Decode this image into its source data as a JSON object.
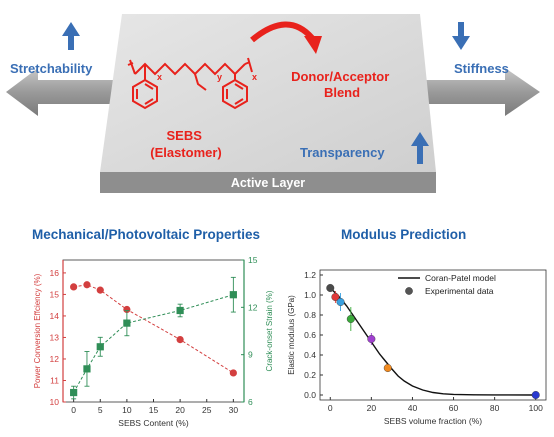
{
  "top_panel": {
    "layer_label": "Active Layer",
    "stretchability": "Stretchability",
    "stiffness": "Stiffness",
    "donor_acceptor": [
      "Donor/Acceptor",
      "Blend"
    ],
    "sebs": [
      "SEBS",
      "(Elastomer)"
    ],
    "transparency": "Transparency",
    "subscripts": {
      "x": "x",
      "y": "y"
    },
    "colors": {
      "blue": "#3a6fb5",
      "red": "#e8221c",
      "arrow_gray": "#a9a9a9",
      "layer_top": "#d6d6d6",
      "layer_front": "#8e8e8e"
    }
  },
  "headings": {
    "left": "Mechanical/Photovoltaic Properties",
    "right": "Modulus Prediction"
  },
  "chart_data": [
    {
      "type": "line",
      "xlabel": "SEBS Content (%)",
      "ylabel_left": "Power Conversion Effciency (%)",
      "ylabel_right": "Crack-onset Strain (%)",
      "x_ticks": [
        0,
        5,
        10,
        15,
        20,
        25,
        30
      ],
      "y_left_ticks": [
        10,
        11,
        12,
        13,
        14,
        15,
        16
      ],
      "y_right_ticks": [
        6,
        9,
        12,
        15
      ],
      "xlim": [
        -2,
        32
      ],
      "ylim_left": [
        10,
        16.6
      ],
      "ylim_right": [
        6,
        15
      ],
      "series": [
        {
          "axis": "left",
          "marker": "circle",
          "color": "#d33f3f",
          "x": [
            0,
            2.5,
            5,
            10,
            20,
            30
          ],
          "y": [
            15.35,
            15.45,
            15.2,
            14.3,
            12.9,
            11.35
          ]
        },
        {
          "axis": "right",
          "marker": "square",
          "color": "#2f8e57",
          "x": [
            0,
            2.5,
            5,
            10,
            20,
            30
          ],
          "y": [
            6.6,
            8.1,
            9.5,
            11.0,
            11.8,
            12.8
          ],
          "err": [
            0.4,
            1.1,
            0.6,
            0.8,
            0.4,
            1.1
          ]
        }
      ]
    },
    {
      "type": "scatter",
      "xlabel": "SEBS volume fraction (%)",
      "ylabel": "Elastic modulus (GPa)",
      "x_ticks": [
        0,
        20,
        40,
        60,
        80,
        100
      ],
      "y_ticks": [
        0.0,
        0.2,
        0.4,
        0.6,
        0.8,
        1.0,
        1.2
      ],
      "xlim": [
        -5,
        105
      ],
      "ylim": [
        -0.05,
        1.25
      ],
      "legend": [
        "Coran-Patel model",
        "Experimental data"
      ],
      "model_curve": {
        "x": [
          0,
          2,
          4,
          6,
          8,
          10,
          12,
          14,
          16,
          18,
          20,
          22,
          24,
          26,
          28,
          30,
          33,
          36,
          40,
          45,
          50,
          55,
          60,
          70,
          80,
          100
        ],
        "y": [
          1.07,
          1.03,
          0.99,
          0.94,
          0.89,
          0.83,
          0.77,
          0.71,
          0.65,
          0.59,
          0.53,
          0.47,
          0.41,
          0.36,
          0.31,
          0.26,
          0.19,
          0.14,
          0.09,
          0.05,
          0.025,
          0.012,
          0.006,
          0.002,
          0.001,
          0.0
        ]
      },
      "points": {
        "x": [
          0,
          2.5,
          5,
          10,
          20,
          28,
          100
        ],
        "y": [
          1.07,
          0.98,
          0.93,
          0.76,
          0.56,
          0.27,
          0.0
        ],
        "err": [
          0.03,
          0.06,
          0.09,
          0.12,
          0.06,
          0.04,
          0.02
        ],
        "colors": [
          "#4a4a4a",
          "#e03a3a",
          "#3aa0e0",
          "#3aaa3a",
          "#a040d0",
          "#f08a20",
          "#2a3ad0"
        ]
      }
    }
  ]
}
